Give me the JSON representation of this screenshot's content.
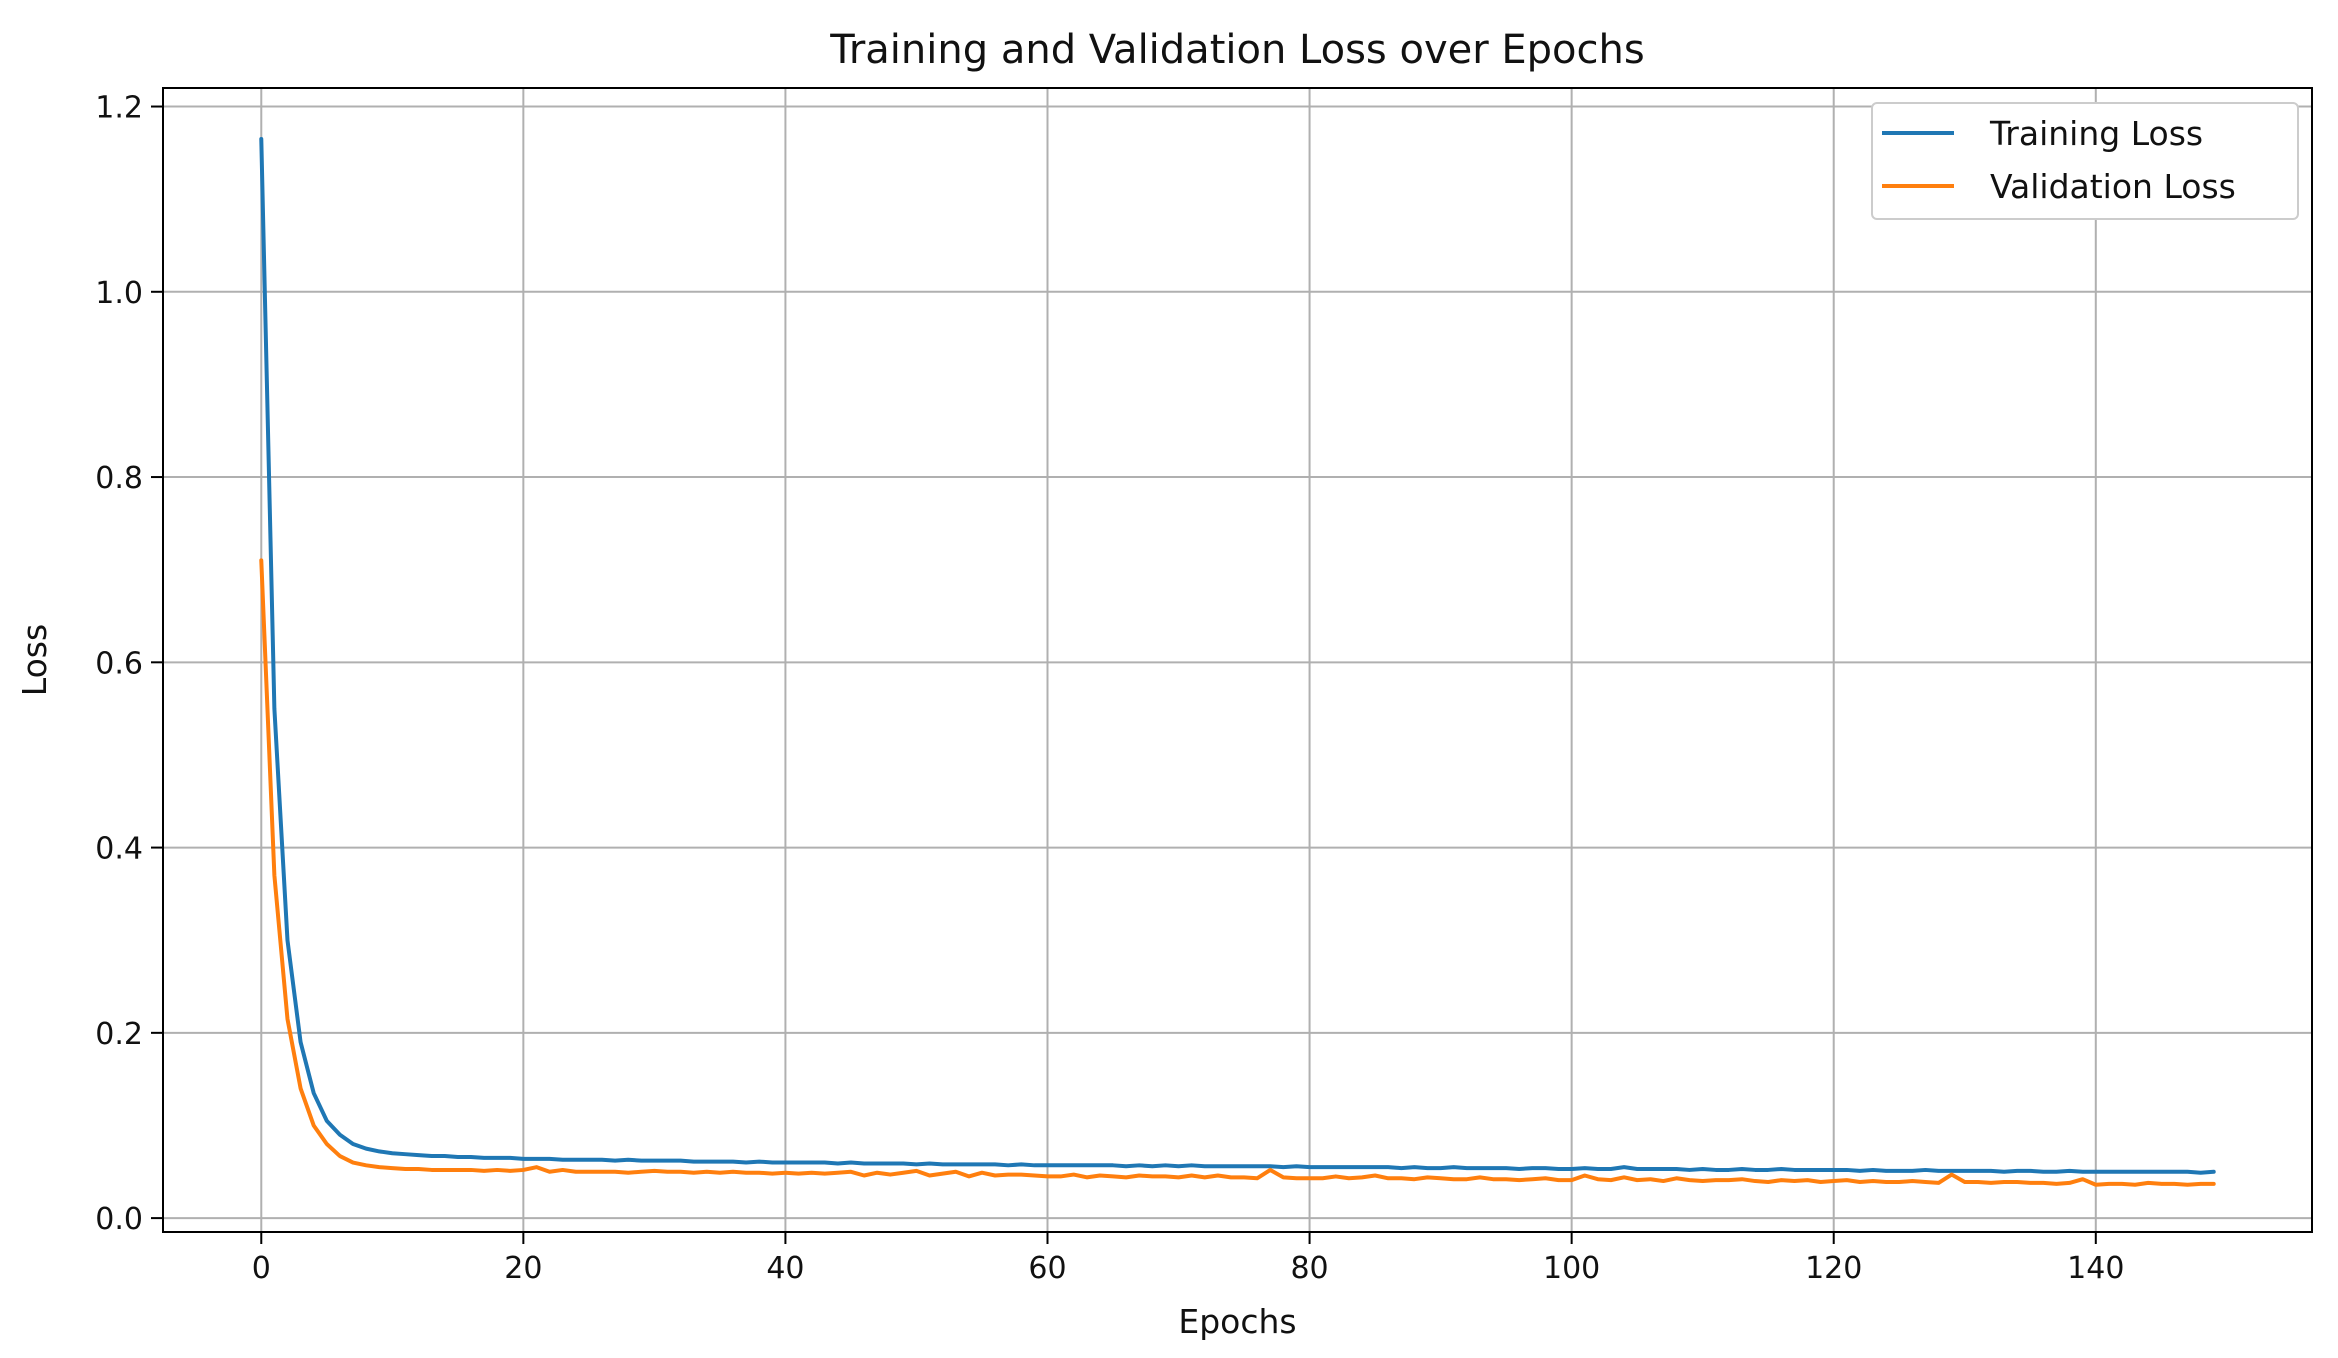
{
  "chart_data": {
    "type": "line",
    "title": "Training and Validation Loss over Epochs",
    "xlabel": "Epochs",
    "ylabel": "Loss",
    "xlim": [
      -7.5,
      156.5
    ],
    "ylim": [
      -0.015,
      1.22
    ],
    "xticks": [
      0,
      20,
      40,
      60,
      80,
      100,
      120,
      140
    ],
    "yticks": [
      0.0,
      0.2,
      0.4,
      0.6,
      0.8,
      1.0,
      1.2
    ],
    "grid": true,
    "legend_position": "top-right",
    "series": [
      {
        "name": "Training Loss",
        "color": "#1f77b4",
        "x": [
          0,
          1,
          2,
          3,
          4,
          5,
          6,
          7,
          8,
          9,
          10,
          11,
          12,
          13,
          14,
          15,
          16,
          17,
          18,
          19,
          20,
          21,
          22,
          23,
          24,
          25,
          26,
          27,
          28,
          29,
          30,
          31,
          32,
          33,
          34,
          35,
          36,
          37,
          38,
          39,
          40,
          41,
          42,
          43,
          44,
          45,
          46,
          47,
          48,
          49,
          50,
          51,
          52,
          53,
          54,
          55,
          56,
          57,
          58,
          59,
          60,
          61,
          62,
          63,
          64,
          65,
          66,
          67,
          68,
          69,
          70,
          71,
          72,
          73,
          74,
          75,
          76,
          77,
          78,
          79,
          80,
          81,
          82,
          83,
          84,
          85,
          86,
          87,
          88,
          89,
          90,
          91,
          92,
          93,
          94,
          95,
          96,
          97,
          98,
          99,
          100,
          101,
          102,
          103,
          104,
          105,
          106,
          107,
          108,
          109,
          110,
          111,
          112,
          113,
          114,
          115,
          116,
          117,
          118,
          119,
          120,
          121,
          122,
          123,
          124,
          125,
          126,
          127,
          128,
          129,
          130,
          131,
          132,
          133,
          134,
          135,
          136,
          137,
          138,
          139,
          140,
          141,
          142,
          143,
          144,
          145,
          146,
          147,
          148,
          149
        ],
        "values": [
          1.165,
          0.55,
          0.3,
          0.19,
          0.135,
          0.105,
          0.09,
          0.08,
          0.075,
          0.072,
          0.07,
          0.069,
          0.068,
          0.067,
          0.067,
          0.066,
          0.066,
          0.065,
          0.065,
          0.065,
          0.064,
          0.064,
          0.064,
          0.063,
          0.063,
          0.063,
          0.063,
          0.062,
          0.063,
          0.062,
          0.062,
          0.062,
          0.062,
          0.061,
          0.061,
          0.061,
          0.061,
          0.06,
          0.061,
          0.06,
          0.06,
          0.06,
          0.06,
          0.06,
          0.059,
          0.06,
          0.059,
          0.059,
          0.059,
          0.059,
          0.058,
          0.059,
          0.058,
          0.058,
          0.058,
          0.058,
          0.058,
          0.057,
          0.058,
          0.057,
          0.057,
          0.057,
          0.057,
          0.057,
          0.057,
          0.057,
          0.056,
          0.057,
          0.056,
          0.057,
          0.056,
          0.057,
          0.056,
          0.056,
          0.056,
          0.056,
          0.056,
          0.056,
          0.055,
          0.056,
          0.055,
          0.055,
          0.055,
          0.055,
          0.055,
          0.055,
          0.055,
          0.054,
          0.055,
          0.054,
          0.054,
          0.055,
          0.054,
          0.054,
          0.054,
          0.054,
          0.053,
          0.054,
          0.054,
          0.053,
          0.053,
          0.054,
          0.053,
          0.053,
          0.055,
          0.053,
          0.053,
          0.053,
          0.053,
          0.052,
          0.053,
          0.052,
          0.052,
          0.053,
          0.052,
          0.052,
          0.053,
          0.052,
          0.052,
          0.052,
          0.052,
          0.052,
          0.051,
          0.052,
          0.051,
          0.051,
          0.051,
          0.052,
          0.051,
          0.051,
          0.051,
          0.051,
          0.051,
          0.05,
          0.051,
          0.051,
          0.05,
          0.05,
          0.051,
          0.05,
          0.05,
          0.05,
          0.05,
          0.05,
          0.05,
          0.05,
          0.05,
          0.05,
          0.049,
          0.05
        ]
      },
      {
        "name": "Validation Loss",
        "color": "#ff7f0e",
        "x": [
          0,
          1,
          2,
          3,
          4,
          5,
          6,
          7,
          8,
          9,
          10,
          11,
          12,
          13,
          14,
          15,
          16,
          17,
          18,
          19,
          20,
          21,
          22,
          23,
          24,
          25,
          26,
          27,
          28,
          29,
          30,
          31,
          32,
          33,
          34,
          35,
          36,
          37,
          38,
          39,
          40,
          41,
          42,
          43,
          44,
          45,
          46,
          47,
          48,
          49,
          50,
          51,
          52,
          53,
          54,
          55,
          56,
          57,
          58,
          59,
          60,
          61,
          62,
          63,
          64,
          65,
          66,
          67,
          68,
          69,
          70,
          71,
          72,
          73,
          74,
          75,
          76,
          77,
          78,
          79,
          80,
          81,
          82,
          83,
          84,
          85,
          86,
          87,
          88,
          89,
          90,
          91,
          92,
          93,
          94,
          95,
          96,
          97,
          98,
          99,
          100,
          101,
          102,
          103,
          104,
          105,
          106,
          107,
          108,
          109,
          110,
          111,
          112,
          113,
          114,
          115,
          116,
          117,
          118,
          119,
          120,
          121,
          122,
          123,
          124,
          125,
          126,
          127,
          128,
          129,
          130,
          131,
          132,
          133,
          134,
          135,
          136,
          137,
          138,
          139,
          140,
          141,
          142,
          143,
          144,
          145,
          146,
          147,
          148,
          149
        ],
        "values": [
          0.71,
          0.37,
          0.215,
          0.14,
          0.1,
          0.08,
          0.067,
          0.06,
          0.057,
          0.055,
          0.054,
          0.053,
          0.053,
          0.052,
          0.052,
          0.052,
          0.052,
          0.051,
          0.052,
          0.051,
          0.052,
          0.055,
          0.05,
          0.052,
          0.05,
          0.05,
          0.05,
          0.05,
          0.049,
          0.05,
          0.051,
          0.05,
          0.05,
          0.049,
          0.05,
          0.049,
          0.05,
          0.049,
          0.049,
          0.048,
          0.049,
          0.048,
          0.049,
          0.048,
          0.049,
          0.05,
          0.046,
          0.049,
          0.047,
          0.049,
          0.051,
          0.046,
          0.048,
          0.05,
          0.045,
          0.049,
          0.046,
          0.047,
          0.047,
          0.046,
          0.045,
          0.045,
          0.047,
          0.044,
          0.046,
          0.045,
          0.044,
          0.046,
          0.045,
          0.045,
          0.044,
          0.046,
          0.044,
          0.046,
          0.044,
          0.044,
          0.043,
          0.052,
          0.044,
          0.043,
          0.043,
          0.043,
          0.045,
          0.043,
          0.044,
          0.046,
          0.043,
          0.043,
          0.042,
          0.044,
          0.043,
          0.042,
          0.042,
          0.044,
          0.042,
          0.042,
          0.041,
          0.042,
          0.043,
          0.041,
          0.041,
          0.046,
          0.042,
          0.041,
          0.044,
          0.041,
          0.042,
          0.04,
          0.043,
          0.041,
          0.04,
          0.041,
          0.041,
          0.042,
          0.04,
          0.039,
          0.041,
          0.04,
          0.041,
          0.039,
          0.04,
          0.041,
          0.039,
          0.04,
          0.039,
          0.039,
          0.04,
          0.039,
          0.038,
          0.047,
          0.039,
          0.039,
          0.038,
          0.039,
          0.039,
          0.038,
          0.038,
          0.037,
          0.038,
          0.042,
          0.036,
          0.037,
          0.037,
          0.036,
          0.038,
          0.037,
          0.037,
          0.036,
          0.037,
          0.037
        ]
      }
    ]
  }
}
